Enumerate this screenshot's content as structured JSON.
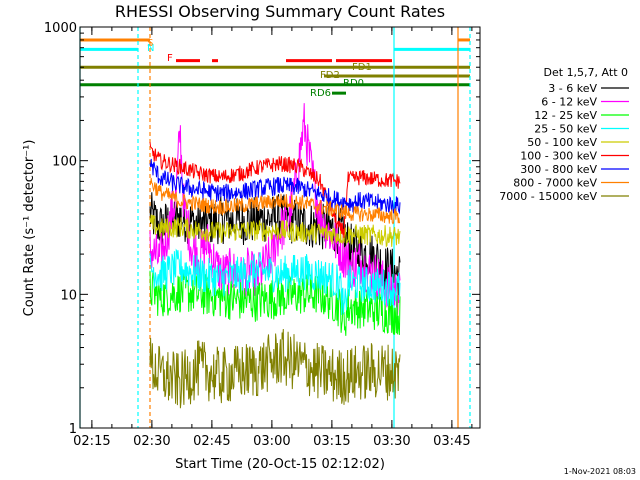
{
  "chart_data": {
    "type": "line",
    "title": "RHESSI Observing Summary Count Rates",
    "xlabel": "Start Time (20-Oct-15 02:12:02)",
    "ylabel": "Count Rate (s⁻¹ detector⁻¹)",
    "yscale": "log",
    "ylim": [
      1,
      1000
    ],
    "xlim_minutes": [
      0,
      100
    ],
    "yticks": [
      {
        "value": 1,
        "label": "1"
      },
      {
        "value": 10,
        "label": "10"
      },
      {
        "value": 100,
        "label": "100"
      },
      {
        "value": 1000,
        "label": "1000"
      }
    ],
    "xticks": [
      {
        "t": 2.97,
        "label": "02:15"
      },
      {
        "t": 17.97,
        "label": "02:30"
      },
      {
        "t": 32.97,
        "label": "02:45"
      },
      {
        "t": 47.97,
        "label": "03:00"
      },
      {
        "t": 62.97,
        "label": "03:15"
      },
      {
        "t": 77.97,
        "label": "03:30"
      },
      {
        "t": 92.97,
        "label": "03:45"
      }
    ],
    "legend_title": "Det 1,5,7, Att 0",
    "legend_position": "right",
    "data_window_minutes": [
      17.5,
      80.5
    ],
    "series": [
      {
        "name": "3 - 6 keV",
        "color": "#000000",
        "points": [
          [
            17.5,
            40
          ],
          [
            20,
            32
          ],
          [
            25,
            38
          ],
          [
            30,
            33
          ],
          [
            35,
            36
          ],
          [
            40,
            35
          ],
          [
            45,
            36
          ],
          [
            50,
            38
          ],
          [
            55,
            34
          ],
          [
            60,
            32
          ],
          [
            65,
            30
          ],
          [
            68,
            22
          ],
          [
            70,
            21
          ],
          [
            72,
            20
          ],
          [
            74,
            19
          ],
          [
            76,
            16
          ],
          [
            78,
            15
          ],
          [
            80,
            14
          ]
        ]
      },
      {
        "name": "6 - 12 keV",
        "color": "#ff00ff",
        "points": [
          [
            17.5,
            22
          ],
          [
            20,
            18
          ],
          [
            22,
            30
          ],
          [
            24,
            55
          ],
          [
            25,
            170
          ],
          [
            26,
            45
          ],
          [
            28,
            22
          ],
          [
            30,
            20
          ],
          [
            32,
            24
          ],
          [
            34,
            16
          ],
          [
            36,
            14
          ],
          [
            38,
            15
          ],
          [
            40,
            13
          ],
          [
            42,
            15
          ],
          [
            44,
            13
          ],
          [
            46,
            16
          ],
          [
            48,
            20
          ],
          [
            50,
            30
          ],
          [
            52,
            35
          ],
          [
            54,
            70
          ],
          [
            56,
            190
          ],
          [
            58,
            80
          ],
          [
            60,
            40
          ],
          [
            62,
            30
          ],
          [
            65,
            22
          ],
          [
            68,
            16
          ],
          [
            70,
            18
          ],
          [
            72,
            15
          ],
          [
            74,
            14
          ],
          [
            76,
            12
          ],
          [
            78,
            11
          ],
          [
            80,
            10
          ]
        ]
      },
      {
        "name": "12 - 25 keV",
        "color": "#00ff00",
        "points": [
          [
            17.5,
            11
          ],
          [
            20,
            9.5
          ],
          [
            25,
            10.5
          ],
          [
            30,
            10
          ],
          [
            35,
            9.5
          ],
          [
            40,
            9
          ],
          [
            45,
            9
          ],
          [
            50,
            9.5
          ],
          [
            55,
            10
          ],
          [
            60,
            10
          ],
          [
            63,
            9
          ],
          [
            65,
            8
          ],
          [
            66,
            6
          ],
          [
            67,
            8
          ],
          [
            70,
            8
          ],
          [
            75,
            7.5
          ],
          [
            80,
            7
          ]
        ]
      },
      {
        "name": "25 - 50 keV",
        "color": "#00ffff",
        "points": [
          [
            17.5,
            16
          ],
          [
            20,
            14
          ],
          [
            25,
            16
          ],
          [
            30,
            14
          ],
          [
            35,
            13
          ],
          [
            40,
            14
          ],
          [
            45,
            15
          ],
          [
            50,
            14
          ],
          [
            55,
            15
          ],
          [
            60,
            14
          ],
          [
            63,
            13
          ],
          [
            65,
            12
          ],
          [
            66,
            7
          ],
          [
            67,
            12
          ],
          [
            70,
            12
          ],
          [
            75,
            11.5
          ],
          [
            80,
            11
          ]
        ]
      },
      {
        "name": "50 - 100 keV",
        "color": "#cccc00",
        "points": [
          [
            17.5,
            34
          ],
          [
            20,
            31
          ],
          [
            25,
            32
          ],
          [
            30,
            30
          ],
          [
            35,
            29
          ],
          [
            40,
            30
          ],
          [
            45,
            30
          ],
          [
            50,
            30
          ],
          [
            55,
            29
          ],
          [
            60,
            29
          ],
          [
            65,
            28
          ],
          [
            68,
            28
          ],
          [
            70,
            28
          ],
          [
            75,
            27.5
          ],
          [
            80,
            27
          ]
        ]
      },
      {
        "name": "100 - 300 keV",
        "color": "#ff0000",
        "points": [
          [
            17.5,
            120
          ],
          [
            20,
            100
          ],
          [
            25,
            90
          ],
          [
            30,
            80
          ],
          [
            35,
            75
          ],
          [
            40,
            80
          ],
          [
            45,
            90
          ],
          [
            50,
            95
          ],
          [
            55,
            90
          ],
          [
            60,
            70
          ],
          [
            65,
            30
          ],
          [
            66,
            30
          ],
          [
            67,
            72
          ],
          [
            70,
            75
          ],
          [
            75,
            72
          ],
          [
            80,
            70
          ]
        ]
      },
      {
        "name": "300 - 800 keV",
        "color": "#0000ff",
        "points": [
          [
            17.5,
            95
          ],
          [
            20,
            75
          ],
          [
            25,
            65
          ],
          [
            30,
            60
          ],
          [
            35,
            57
          ],
          [
            40,
            58
          ],
          [
            45,
            62
          ],
          [
            50,
            65
          ],
          [
            55,
            63
          ],
          [
            60,
            56
          ],
          [
            65,
            50
          ],
          [
            68,
            48
          ],
          [
            70,
            50
          ],
          [
            75,
            48
          ],
          [
            80,
            46
          ]
        ]
      },
      {
        "name": "800 - 7000 keV",
        "color": "#ff8000",
        "points": [
          [
            17.5,
            70
          ],
          [
            20,
            58
          ],
          [
            25,
            50
          ],
          [
            30,
            47
          ],
          [
            35,
            45
          ],
          [
            40,
            46
          ],
          [
            45,
            48
          ],
          [
            50,
            50
          ],
          [
            55,
            49
          ],
          [
            60,
            45
          ],
          [
            65,
            42
          ],
          [
            68,
            40
          ],
          [
            70,
            40
          ],
          [
            75,
            39
          ],
          [
            80,
            38
          ]
        ]
      },
      {
        "name": "7000 - 15000 keV",
        "color": "#808000",
        "points": [
          [
            17.5,
            3
          ],
          [
            20,
            2.5
          ],
          [
            25,
            2.2
          ],
          [
            30,
            2.8
          ],
          [
            35,
            2.4
          ],
          [
            40,
            2.6
          ],
          [
            45,
            2.8
          ],
          [
            50,
            3.4
          ],
          [
            55,
            3
          ],
          [
            60,
            2.6
          ],
          [
            65,
            2.4
          ],
          [
            70,
            2.6
          ],
          [
            75,
            2.7
          ],
          [
            80,
            2.6
          ]
        ]
      }
    ],
    "flag_bars": [
      {
        "label": "S",
        "color": "#ff8000",
        "value": 800,
        "segments": [
          [
            -2,
            17.5
          ],
          [
            94.5,
            97.5
          ]
        ]
      },
      {
        "label": "N",
        "color": "#00ffff",
        "value": 680,
        "segments": [
          [
            -2,
            14.5
          ],
          [
            78.5,
            97.5
          ]
        ]
      },
      {
        "label": "F",
        "color": "#ff0000",
        "value": 560,
        "segments": [
          [
            24,
            30
          ],
          [
            33,
            34.5
          ],
          [
            51.5,
            63
          ],
          [
            64,
            78
          ]
        ]
      },
      {
        "label": "FD1",
        "color": "#808000",
        "value": 500,
        "segments": [
          [
            -2,
            97.5
          ]
        ]
      },
      {
        "label": "FD2",
        "color": "#808000",
        "value": 430,
        "segments": [
          [
            61,
            97.5
          ]
        ]
      },
      {
        "label": "RD0",
        "color": "#008000",
        "value": 370,
        "segments": [
          [
            -2,
            97.5
          ]
        ]
      },
      {
        "label": "RD6",
        "color": "#008000",
        "value": 320,
        "segments": [
          [
            63,
            66.5
          ]
        ]
      }
    ],
    "vertical_markers": [
      {
        "t": 0,
        "color": "#00ffff",
        "style": "solid"
      },
      {
        "t": 14.5,
        "color": "#00ffff",
        "style": "dashed"
      },
      {
        "t": 17.5,
        "color": "#ff8000",
        "style": "dashed"
      },
      {
        "t": 78.5,
        "color": "#00ffff",
        "style": "solid"
      },
      {
        "t": 94.5,
        "color": "#ff8000",
        "style": "solid"
      },
      {
        "t": 97.5,
        "color": "#00ffff",
        "style": "dashed"
      }
    ]
  },
  "footer": {
    "timestamp": "1-Nov-2021 08:03"
  }
}
